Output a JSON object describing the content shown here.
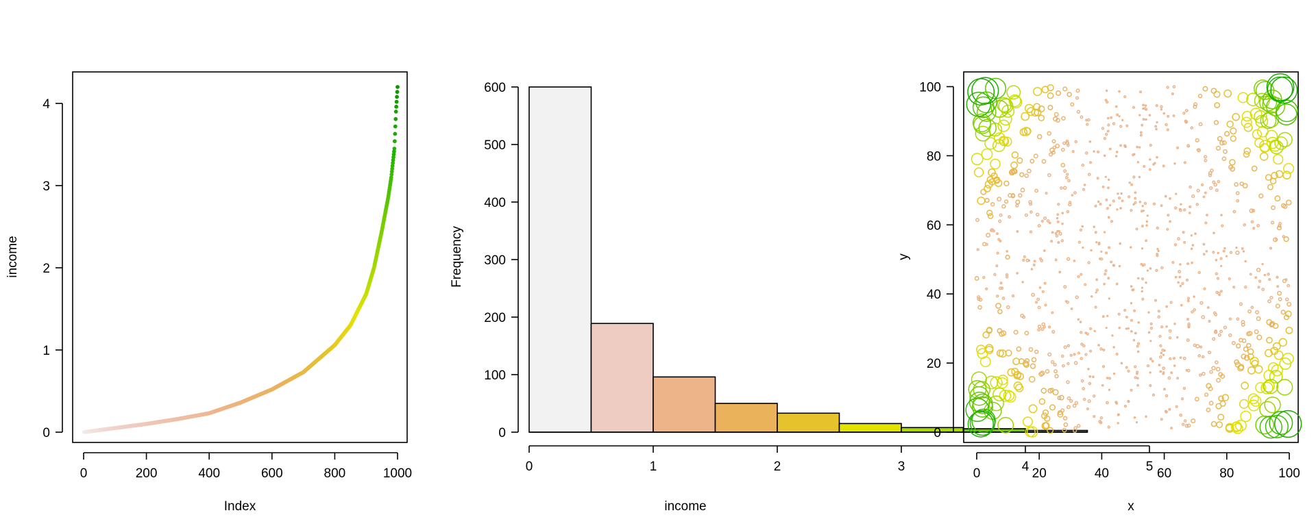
{
  "palette": [
    "#f2f2f2",
    "#efccc2",
    "#edb48a",
    "#e9b25b",
    "#e6c22c",
    "#e3e300",
    "#a6d900",
    "#6ccb00",
    "#1fb400",
    "#109600"
  ],
  "chart_data": [
    {
      "type": "scatter",
      "xlabel": "Index",
      "ylabel": "income",
      "xlim": [
        0,
        1000
      ],
      "ylim": [
        0,
        4.2
      ],
      "xticks": [
        0,
        200,
        400,
        600,
        800,
        1000
      ],
      "yticks": [
        0,
        1,
        2,
        3,
        4
      ],
      "x_tick_labels": [
        "0",
        "200",
        "400",
        "600",
        "800",
        "1000"
      ],
      "y_tick_labels": [
        "0",
        "1",
        "2",
        "3",
        "4"
      ],
      "n_points": 1000,
      "curve_x": [
        1,
        100,
        200,
        300,
        400,
        500,
        600,
        700,
        800,
        850,
        900,
        925,
        950,
        970,
        980,
        990,
        995,
        1000
      ],
      "curve_y": [
        0.0,
        0.05,
        0.1,
        0.16,
        0.23,
        0.36,
        0.52,
        0.73,
        1.06,
        1.3,
        1.68,
        2.0,
        2.45,
        2.85,
        3.1,
        3.45,
        3.9,
        4.2
      ],
      "grid": false
    },
    {
      "type": "bar",
      "xlabel": "income",
      "ylabel": "Frequency",
      "bin_edges": [
        0,
        0.5,
        1,
        1.5,
        2,
        2.5,
        3,
        3.5,
        4,
        4.5
      ],
      "values": [
        600,
        189,
        96,
        50,
        33,
        15,
        8,
        6,
        3
      ],
      "xlim": [
        0,
        5
      ],
      "ylim": [
        0,
        600
      ],
      "xticks": [
        0,
        1,
        2,
        3,
        4,
        5
      ],
      "yticks": [
        0,
        100,
        200,
        300,
        400,
        500,
        600
      ],
      "x_tick_labels": [
        "0",
        "1",
        "2",
        "3",
        "4",
        "5"
      ],
      "y_tick_labels": [
        "0",
        "100",
        "200",
        "300",
        "400",
        "500",
        "600"
      ],
      "grid": false
    },
    {
      "type": "scatter",
      "xlabel": "x",
      "ylabel": "y",
      "xlim": [
        0,
        100
      ],
      "ylim": [
        0,
        100
      ],
      "xticks": [
        0,
        20,
        40,
        60,
        80,
        100
      ],
      "yticks": [
        0,
        20,
        40,
        60,
        80,
        100
      ],
      "x_tick_labels": [
        "0",
        "20",
        "40",
        "60",
        "80",
        "100"
      ],
      "y_tick_labels": [
        "0",
        "20",
        "40",
        "60",
        "80",
        "100"
      ],
      "n_points": 1000,
      "marker_size_encodes": "income",
      "grid": false
    }
  ]
}
